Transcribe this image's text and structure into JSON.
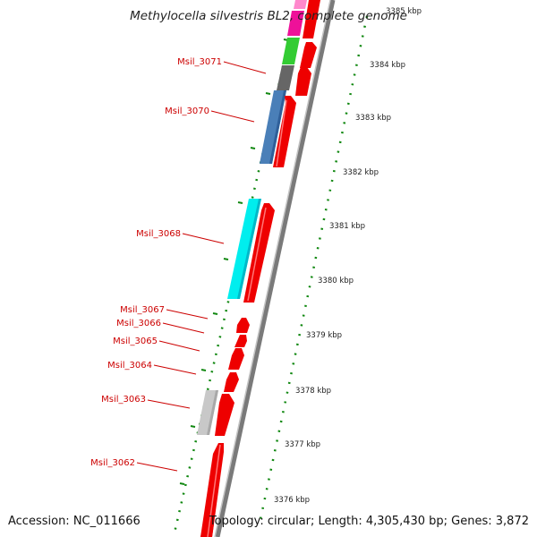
{
  "title": "Methylocella silvestris BL2, complete genome",
  "accession_text": "Accession: NC_011666",
  "summary_text": "Topology: circular; Length: 4,305,430 bp; Genes: 3,872",
  "colors": {
    "forward": "#ee0000",
    "gc_skew": "#118811",
    "backbone": "#8a8a8a",
    "label": "#cc0000"
  },
  "kbp_ticks": [
    "3376 kbp",
    "3377 kbp",
    "3378 kbp",
    "3379 kbp",
    "3380 kbp",
    "3381 kbp",
    "3382 kbp",
    "3383 kbp",
    "3384 kbp",
    "3385 kbp"
  ],
  "gene_labels": [
    "Msil_3062",
    "Msil_3063",
    "Msil_3064",
    "Msil_3065",
    "Msil_3066",
    "Msil_3067",
    "Msil_3068",
    "Msil_3070",
    "Msil_3071"
  ],
  "reverse_genes": [
    {
      "name": "Msil_3063",
      "color": "#c8c8c8"
    },
    {
      "name": "Msil_3068",
      "color": "#00eeee"
    },
    {
      "name": "Msil_3070",
      "color": "#4a7fb8"
    },
    {
      "name": "Msil_3071",
      "color": "#666666"
    },
    {
      "name": "",
      "color": "#33cc33"
    },
    {
      "name": "",
      "color": "#ee1199"
    }
  ]
}
